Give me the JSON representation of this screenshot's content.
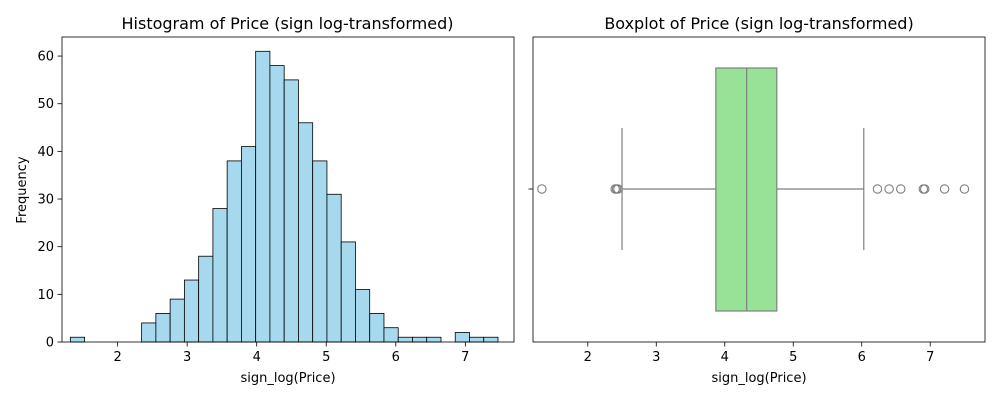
{
  "chart_data": [
    {
      "type": "histogram",
      "title": "Histogram of Price (sign log-transformed)",
      "xlabel": "sign_log(Price)",
      "ylabel": "Frequency",
      "xlim": [
        1.2,
        7.7
      ],
      "ylim": [
        0,
        64
      ],
      "xticks": [
        2,
        3,
        4,
        5,
        6,
        7
      ],
      "yticks": [
        0,
        10,
        20,
        30,
        40,
        50,
        60
      ],
      "grid": false,
      "bar_color": "#a6d8ee",
      "edge_color": "#000000",
      "bins": [
        {
          "x0": 1.32,
          "x1": 1.525,
          "count": 1
        },
        {
          "x0": 1.525,
          "x1": 1.73,
          "count": 0
        },
        {
          "x0": 1.73,
          "x1": 1.935,
          "count": 0
        },
        {
          "x0": 1.935,
          "x1": 2.14,
          "count": 0
        },
        {
          "x0": 2.14,
          "x1": 2.345,
          "count": 0
        },
        {
          "x0": 2.345,
          "x1": 2.55,
          "count": 4
        },
        {
          "x0": 2.55,
          "x1": 2.755,
          "count": 6
        },
        {
          "x0": 2.755,
          "x1": 2.96,
          "count": 9
        },
        {
          "x0": 2.96,
          "x1": 3.165,
          "count": 13
        },
        {
          "x0": 3.165,
          "x1": 3.37,
          "count": 18
        },
        {
          "x0": 3.37,
          "x1": 3.575,
          "count": 28
        },
        {
          "x0": 3.575,
          "x1": 3.78,
          "count": 38
        },
        {
          "x0": 3.78,
          "x1": 3.985,
          "count": 41
        },
        {
          "x0": 3.985,
          "x1": 4.19,
          "count": 61
        },
        {
          "x0": 4.19,
          "x1": 4.395,
          "count": 58
        },
        {
          "x0": 4.395,
          "x1": 4.6,
          "count": 55
        },
        {
          "x0": 4.6,
          "x1": 4.805,
          "count": 46
        },
        {
          "x0": 4.805,
          "x1": 5.01,
          "count": 38
        },
        {
          "x0": 5.01,
          "x1": 5.215,
          "count": 31
        },
        {
          "x0": 5.215,
          "x1": 5.42,
          "count": 21
        },
        {
          "x0": 5.42,
          "x1": 5.625,
          "count": 11
        },
        {
          "x0": 5.625,
          "x1": 5.83,
          "count": 6
        },
        {
          "x0": 5.83,
          "x1": 6.035,
          "count": 3
        },
        {
          "x0": 6.035,
          "x1": 6.24,
          "count": 1
        },
        {
          "x0": 6.24,
          "x1": 6.445,
          "count": 1
        },
        {
          "x0": 6.445,
          "x1": 6.65,
          "count": 1
        },
        {
          "x0": 6.65,
          "x1": 6.855,
          "count": 0
        },
        {
          "x0": 6.855,
          "x1": 7.06,
          "count": 2
        },
        {
          "x0": 7.06,
          "x1": 7.265,
          "count": 1
        },
        {
          "x0": 7.265,
          "x1": 7.47,
          "count": 1
        }
      ]
    },
    {
      "type": "boxplot",
      "title": "Boxplot of Price (sign log-transformed)",
      "xlabel": "sign_log(Price)",
      "xlim": [
        1.2,
        7.8
      ],
      "xticks": [
        2,
        3,
        4,
        5,
        6,
        7
      ],
      "grid": false,
      "box_color": "#98e298",
      "line_color": "#7f7f7f",
      "q1": 3.87,
      "median": 4.32,
      "q3": 4.76,
      "whisker_low": 2.5,
      "whisker_high": 6.03,
      "outliers": [
        1.33,
        2.4,
        2.42,
        2.44,
        6.23,
        6.4,
        6.57,
        6.9,
        6.92,
        7.21,
        7.5
      ]
    }
  ]
}
